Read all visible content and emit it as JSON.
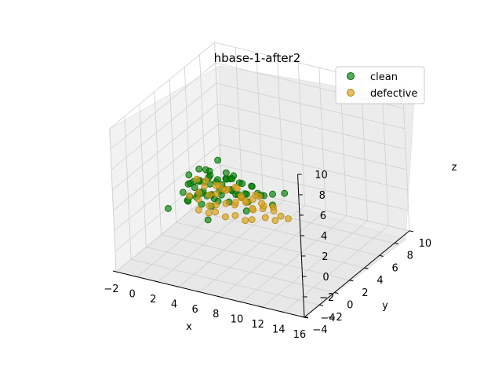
{
  "chart_data": {
    "type": "scatter",
    "projection": "3d",
    "title": "hbase-1-after2",
    "xlabel": "x",
    "ylabel": "y",
    "zlabel": "z",
    "xlim": [
      -2,
      16
    ],
    "ylim": [
      -4,
      10
    ],
    "zlim": [
      -4,
      10
    ],
    "xticks": [
      -2,
      0,
      2,
      4,
      6,
      8,
      10,
      12,
      14,
      16
    ],
    "yticks": [
      -4,
      -2,
      0,
      2,
      4,
      6,
      8,
      10
    ],
    "zticks": [
      -4,
      -2,
      0,
      2,
      4,
      6,
      8,
      10
    ],
    "grid": true,
    "legend_position": "top-right",
    "series": [
      {
        "name": "clean",
        "color": "#008000",
        "points": [
          [
            0.0,
            2.4,
            0.4
          ],
          [
            0.1,
            2.8,
            -0.6
          ],
          [
            0.3,
            3.0,
            1.0
          ],
          [
            0.5,
            2.6,
            0.0
          ],
          [
            0.7,
            3.2,
            -0.4
          ],
          [
            0.2,
            3.6,
            0.8
          ],
          [
            0.9,
            3.4,
            1.2
          ],
          [
            1.1,
            2.8,
            0.2
          ],
          [
            1.3,
            3.0,
            -0.8
          ],
          [
            0.4,
            4.0,
            0.6
          ],
          [
            1.5,
            3.8,
            1.4
          ],
          [
            1.7,
            3.2,
            0.0
          ],
          [
            0.6,
            2.2,
            -0.2
          ],
          [
            1.9,
            4.2,
            0.8
          ],
          [
            2.1,
            3.6,
            -0.4
          ],
          [
            0.8,
            4.4,
            1.6
          ],
          [
            2.3,
            3.0,
            0.4
          ],
          [
            1.0,
            2.6,
            1.0
          ],
          [
            2.5,
            4.0,
            -0.2
          ],
          [
            1.2,
            3.4,
            0.2
          ],
          [
            2.7,
            4.4,
            1.2
          ],
          [
            1.4,
            4.2,
            -0.6
          ],
          [
            2.9,
            3.8,
            0.6
          ],
          [
            1.6,
            2.4,
            0.8
          ],
          [
            3.1,
            4.6,
            0.0
          ],
          [
            1.8,
            3.6,
            1.8
          ],
          [
            3.3,
            4.2,
            0.4
          ],
          [
            2.0,
            4.8,
            0.2
          ],
          [
            3.5,
            3.6,
            -0.4
          ],
          [
            2.2,
            3.0,
            1.4
          ],
          [
            3.7,
            4.8,
            0.8
          ],
          [
            2.4,
            2.8,
            -0.6
          ],
          [
            3.9,
            4.0,
            0.2
          ],
          [
            2.6,
            4.6,
            1.0
          ],
          [
            4.1,
            4.4,
            -0.2
          ],
          [
            2.8,
            3.4,
            0.6
          ],
          [
            4.3,
            3.8,
            0.4
          ],
          [
            3.0,
            5.0,
            1.2
          ],
          [
            4.5,
            4.6,
            0.0
          ],
          [
            3.2,
            2.6,
            0.2
          ],
          [
            4.7,
            5.0,
            0.6
          ],
          [
            3.4,
            4.0,
            1.6
          ],
          [
            4.9,
            4.2,
            -0.4
          ],
          [
            5.1,
            3.6,
            0.8
          ],
          [
            5.4,
            4.8,
            0.2
          ],
          [
            5.7,
            5.2,
            -0.2
          ],
          [
            6.0,
            4.4,
            0.4
          ],
          [
            6.4,
            5.4,
            0.0
          ],
          [
            6.8,
            4.8,
            -0.6
          ],
          [
            7.4,
            5.6,
            0.2
          ],
          [
            0.2,
            3.0,
            1.8
          ],
          [
            0.6,
            3.8,
            2.0
          ],
          [
            1.0,
            4.6,
            1.4
          ],
          [
            1.4,
            5.2,
            2.2
          ],
          [
            0.4,
            2.6,
            1.2
          ],
          [
            1.6,
            4.8,
            0.6
          ],
          [
            0.9,
            3.6,
            -0.2
          ],
          [
            2.0,
            5.4,
            1.0
          ],
          [
            0.3,
            4.8,
            0.0
          ],
          [
            2.4,
            5.6,
            0.4
          ],
          [
            3.2,
            5.8,
            0.0
          ],
          [
            4.0,
            6.0,
            -0.2
          ],
          [
            2.6,
            2.0,
            -1.4
          ],
          [
            5.6,
            3.0,
            -0.4
          ],
          [
            -0.6,
            1.2,
            -0.6
          ]
        ]
      },
      {
        "name": "defective",
        "color": "#DAA520",
        "points": [
          [
            0.6,
            2.4,
            0.2
          ],
          [
            1.0,
            3.0,
            -0.4
          ],
          [
            1.4,
            2.6,
            0.6
          ],
          [
            1.8,
            3.4,
            0.0
          ],
          [
            2.2,
            2.8,
            -0.6
          ],
          [
            2.6,
            3.2,
            0.4
          ],
          [
            3.0,
            2.6,
            -0.2
          ],
          [
            3.4,
            3.6,
            0.8
          ],
          [
            3.8,
            2.8,
            0.0
          ],
          [
            4.2,
            3.4,
            -0.4
          ],
          [
            4.6,
            3.0,
            0.2
          ],
          [
            5.0,
            3.8,
            -0.2
          ],
          [
            5.4,
            3.2,
            0.4
          ],
          [
            5.8,
            3.6,
            -0.6
          ],
          [
            6.2,
            3.0,
            0.0
          ],
          [
            6.6,
            3.8,
            -0.4
          ],
          [
            7.0,
            3.4,
            0.2
          ],
          [
            7.4,
            3.0,
            -0.6
          ],
          [
            7.8,
            3.6,
            -0.2
          ],
          [
            8.2,
            3.2,
            -0.8
          ],
          [
            1.2,
            3.8,
            1.0
          ],
          [
            2.0,
            4.0,
            0.6
          ],
          [
            2.8,
            4.2,
            0.2
          ],
          [
            3.6,
            4.4,
            0.6
          ],
          [
            4.4,
            4.0,
            0.0
          ],
          [
            5.2,
            4.4,
            -0.2
          ],
          [
            6.0,
            4.2,
            0.4
          ],
          [
            1.6,
            2.2,
            -0.8
          ],
          [
            2.4,
            2.4,
            -1.0
          ],
          [
            3.2,
            2.2,
            -0.6
          ],
          [
            4.0,
            2.4,
            -1.0
          ],
          [
            4.8,
            2.6,
            -0.8
          ],
          [
            5.6,
            2.8,
            -1.2
          ],
          [
            6.4,
            2.6,
            -0.8
          ],
          [
            0.8,
            3.2,
            1.4
          ],
          [
            1.8,
            2.8,
            1.2
          ],
          [
            2.6,
            3.6,
            1.0
          ],
          [
            3.4,
            3.0,
            1.2
          ],
          [
            4.2,
            3.8,
            1.0
          ],
          [
            5.0,
            3.2,
            0.8
          ],
          [
            5.8,
            4.0,
            0.6
          ],
          [
            6.8,
            3.4,
            0.4
          ],
          [
            7.6,
            3.8,
            0.0
          ],
          [
            8.6,
            3.4,
            -0.4
          ],
          [
            9.0,
            3.8,
            -0.8
          ]
        ]
      }
    ]
  }
}
